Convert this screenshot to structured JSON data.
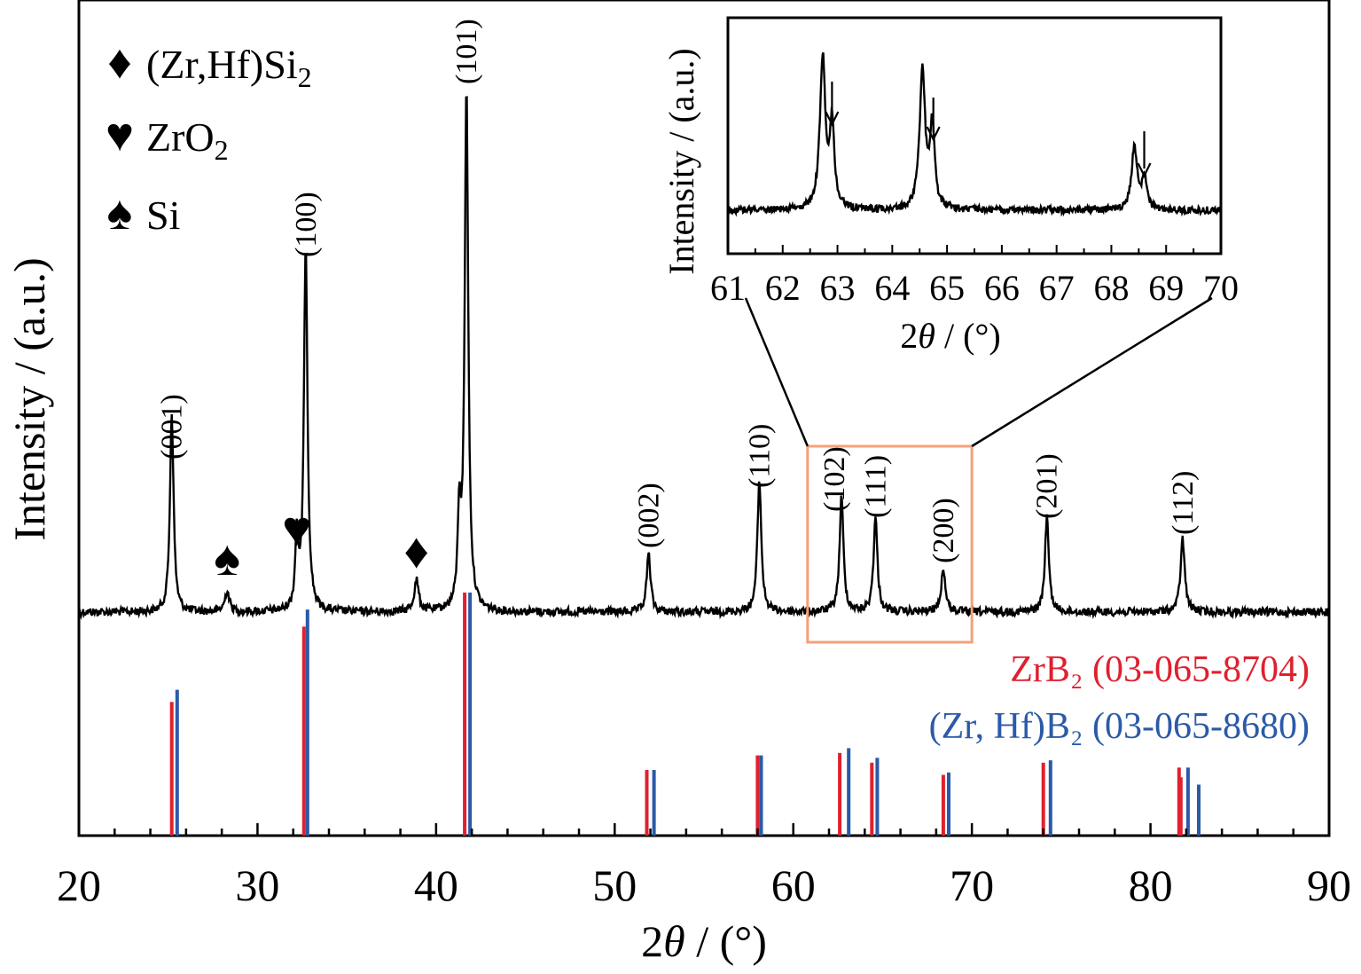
{
  "chart_data": {
    "type": "line",
    "xlabel": "2θ / (°)",
    "ylabel": "Intensity / (a.u.)",
    "xlim": [
      20,
      90
    ],
    "xticks": [
      "20",
      "30",
      "40",
      "50",
      "60",
      "70",
      "80",
      "90"
    ],
    "xrd_pattern": {
      "baseline": 0.0,
      "peaks": [
        {
          "x": 25.2,
          "h": 0.38,
          "w": 0.12
        },
        {
          "x": 28.3,
          "h": 0.04,
          "w": 0.15
        },
        {
          "x": 32.2,
          "h": 0.14,
          "w": 0.1
        },
        {
          "x": 32.7,
          "h": 0.7,
          "w": 0.12
        },
        {
          "x": 38.9,
          "h": 0.06,
          "w": 0.15
        },
        {
          "x": 41.3,
          "h": 0.17,
          "w": 0.1
        },
        {
          "x": 41.7,
          "h": 1.0,
          "w": 0.12
        },
        {
          "x": 51.9,
          "h": 0.11,
          "w": 0.13
        },
        {
          "x": 58.1,
          "h": 0.25,
          "w": 0.13
        },
        {
          "x": 62.7,
          "h": 0.22,
          "w": 0.13
        },
        {
          "x": 64.6,
          "h": 0.18,
          "w": 0.13
        },
        {
          "x": 68.4,
          "h": 0.08,
          "w": 0.15
        },
        {
          "x": 74.2,
          "h": 0.18,
          "w": 0.13
        },
        {
          "x": 81.8,
          "h": 0.14,
          "w": 0.14
        }
      ]
    },
    "reference_series": [
      {
        "name": "ZrB₂ (03-065-8704)",
        "color": "#e0202e",
        "x": [
          25.2,
          32.6,
          41.6,
          51.8,
          58.0,
          62.6,
          64.4,
          68.4,
          74.0,
          81.6,
          81.7
        ],
        "y": [
          0.55,
          0.86,
          1.0,
          0.27,
          0.33,
          0.34,
          0.3,
          0.25,
          0.3,
          0.28,
          0.24
        ]
      },
      {
        "name": "(Zr, Hf)B₂ (03-065-8680)",
        "color": "#2b5aa8",
        "x": [
          25.5,
          32.8,
          41.9,
          52.2,
          58.2,
          63.1,
          64.7,
          68.7,
          74.4,
          82.1,
          82.7
        ],
        "y": [
          0.6,
          0.93,
          1.0,
          0.27,
          0.33,
          0.36,
          0.32,
          0.26,
          0.31,
          0.28,
          0.21
        ]
      }
    ],
    "hkl_labels": [
      {
        "text": "(001)",
        "x": 25.2
      },
      {
        "text": "(100)",
        "x": 32.7
      },
      {
        "text": "(101)",
        "x": 41.7
      },
      {
        "text": "(002)",
        "x": 51.9
      },
      {
        "text": "(110)",
        "x": 58.1
      },
      {
        "text": "(102)",
        "x": 62.3
      },
      {
        "text": "(111)",
        "x": 64.6
      },
      {
        "text": "(200)",
        "x": 68.4
      },
      {
        "text": "(201)",
        "x": 74.2
      },
      {
        "text": "(112)",
        "x": 81.8
      }
    ],
    "phase_markers": [
      {
        "symbol": "♠",
        "phase": "Si",
        "x": 28.3
      },
      {
        "symbol": "♥",
        "phase": "ZrO₂",
        "x": 32.2
      },
      {
        "symbol": "♦",
        "phase": "(Zr,Hf)Si₂",
        "x": 38.9
      }
    ],
    "legend": {
      "placement": "top-left",
      "entries": [
        {
          "symbol": "♦",
          "label": "(Zr,Hf)Si",
          "sub": "2"
        },
        {
          "symbol": "♥",
          "label": "ZrO",
          "sub": "2"
        },
        {
          "symbol": "♠",
          "label": "Si",
          "sub": ""
        }
      ]
    },
    "zoom_region": {
      "x": [
        60.8,
        70.0
      ],
      "color": "#f4a07a"
    },
    "inset": {
      "xlabel": "2θ / (°)",
      "ylabel": "Intensity / (a.u.)",
      "xlim": [
        61,
        70
      ],
      "xticks": [
        "61",
        "62",
        "63",
        "64",
        "65",
        "66",
        "67",
        "68",
        "69",
        "70"
      ],
      "peaks": [
        {
          "x": 62.73,
          "h": 1.0,
          "w": 0.06
        },
        {
          "x": 62.9,
          "h": 0.55,
          "w": 0.05
        },
        {
          "x": 64.55,
          "h": 0.93,
          "w": 0.06
        },
        {
          "x": 64.73,
          "h": 0.55,
          "w": 0.05
        },
        {
          "x": 68.42,
          "h": 0.42,
          "w": 0.06
        },
        {
          "x": 68.6,
          "h": 0.22,
          "w": 0.05
        }
      ],
      "arrows_at": [
        62.9,
        64.75,
        68.6
      ]
    }
  }
}
